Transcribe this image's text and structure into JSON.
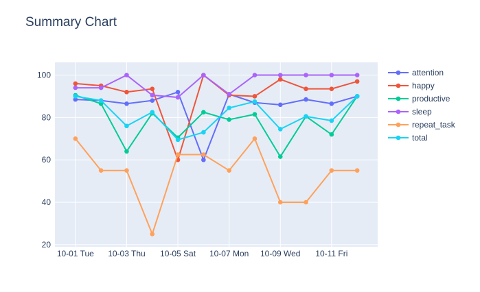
{
  "chart_data": {
    "type": "line",
    "title": "Summary Chart",
    "xlabel": "",
    "ylabel": "",
    "x": [
      "2024-10-01",
      "2024-10-02",
      "2024-10-03",
      "2024-10-04",
      "2024-10-05",
      "2024-10-06",
      "2024-10-07",
      "2024-10-08",
      "2024-10-09",
      "2024-10-10",
      "2024-10-11",
      "2024-10-12"
    ],
    "x_ticks": [
      {
        "date": "2024-10-01",
        "label": "10-01 Tue"
      },
      {
        "date": "2024-10-03",
        "label": "10-03 Thu"
      },
      {
        "date": "2024-10-05",
        "label": "10-05 Sat"
      },
      {
        "date": "2024-10-07",
        "label": "10-07 Mon"
      },
      {
        "date": "2024-10-09",
        "label": "10-09 Wed"
      },
      {
        "date": "2024-10-11",
        "label": "10-11 Fri"
      }
    ],
    "ylim": [
      19,
      106
    ],
    "y_ticks": [
      20,
      40,
      60,
      80,
      100
    ],
    "grid": true,
    "legend_position": "right",
    "background": "#e5ecf6",
    "series": [
      {
        "name": "attention",
        "color": "#636efa",
        "values": [
          88.5,
          88,
          86.5,
          88,
          92,
          60,
          91,
          87,
          86,
          88.5,
          86.5,
          90
        ]
      },
      {
        "name": "happy",
        "color": "#ef553b",
        "values": [
          96,
          95,
          92,
          93.5,
          60,
          100,
          90.5,
          90,
          98,
          93.5,
          93.5,
          97
        ]
      },
      {
        "name": "productive",
        "color": "#00cc96",
        "values": [
          90.5,
          86.5,
          64,
          82,
          70.5,
          82.5,
          79,
          81.5,
          61.5,
          80.5,
          72,
          90
        ]
      },
      {
        "name": "sleep",
        "color": "#ab63fa",
        "values": [
          94,
          94,
          100,
          90.5,
          89.5,
          100,
          91,
          100,
          100,
          100,
          100,
          100
        ]
      },
      {
        "name": "repeat_task",
        "color": "#ffa15a",
        "values": [
          70,
          55,
          55,
          25,
          62.5,
          62.5,
          55,
          70,
          40,
          40,
          55,
          55
        ]
      },
      {
        "name": "total",
        "color": "#19d3f3",
        "values": [
          90,
          88,
          76,
          82.5,
          69.5,
          73,
          84.5,
          87.5,
          74.5,
          80.5,
          78.5,
          90
        ]
      }
    ]
  }
}
